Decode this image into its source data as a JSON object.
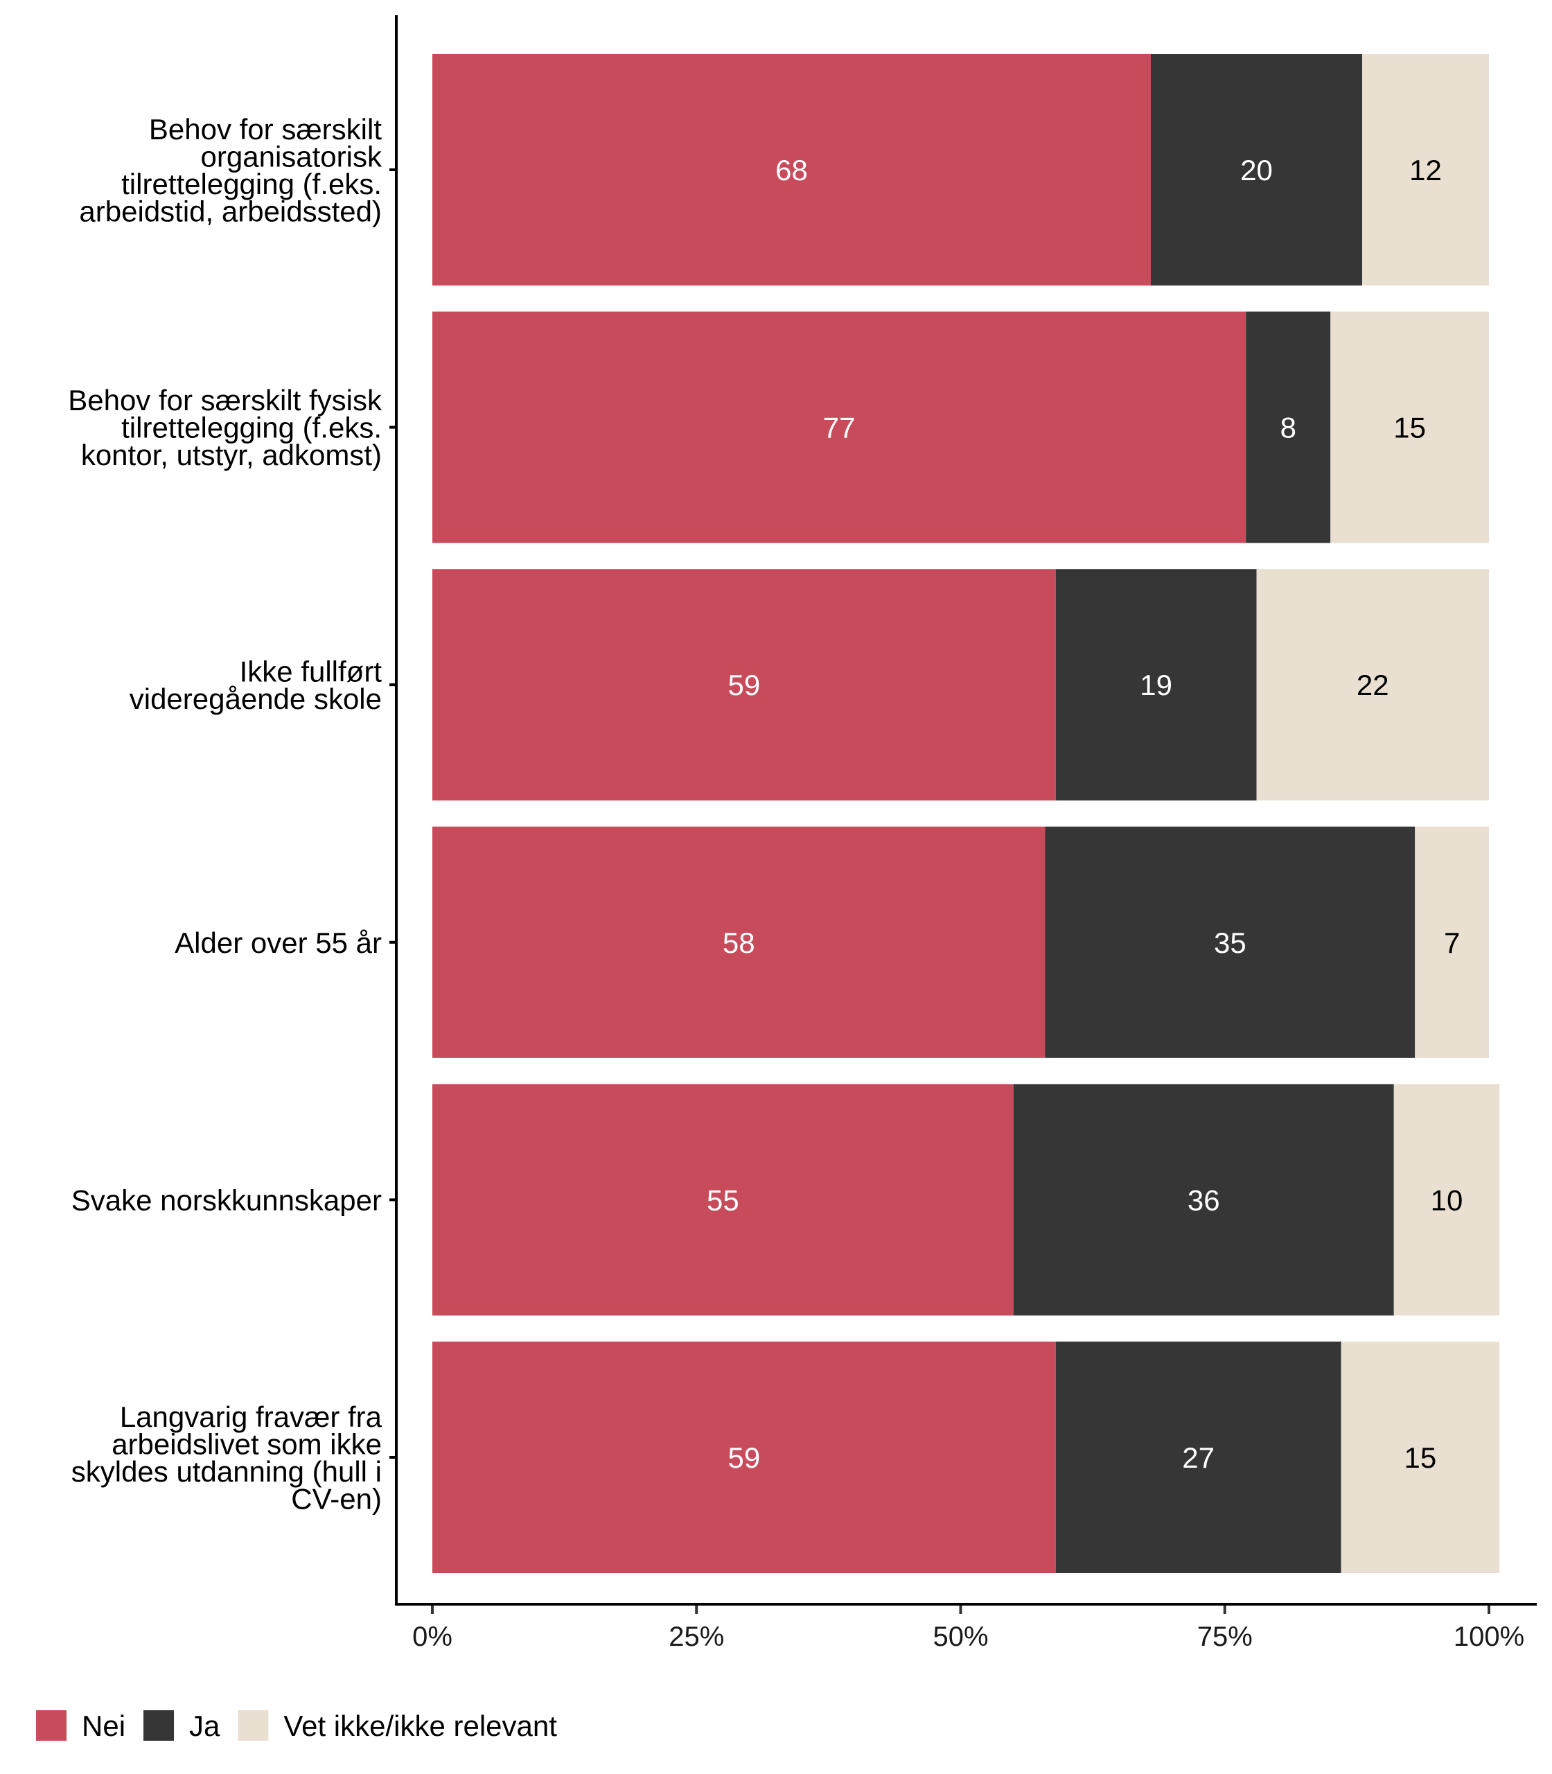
{
  "chart_data": {
    "type": "bar",
    "orientation": "horizontal",
    "stacked": true,
    "title": "",
    "xlabel": "",
    "ylabel": "",
    "xlim": [
      0,
      100
    ],
    "x_ticks": [
      0,
      25,
      50,
      75,
      100
    ],
    "x_tick_labels": [
      "0%",
      "25%",
      "50%",
      "75%",
      "100%"
    ],
    "grid": false,
    "legend_position": "bottom-left",
    "categories": [
      [
        "Behov for særskilt",
        "organisatorisk",
        "tilrettelegging (f.eks.",
        "arbeidstid, arbeidssted)"
      ],
      [
        "Behov for særskilt fysisk",
        "tilrettelegging (f.eks.",
        "kontor, utstyr, adkomst)"
      ],
      [
        "Ikke fullført",
        "videregående skole"
      ],
      [
        "Alder over 55 år"
      ],
      [
        "Svake norskkunnskaper"
      ],
      [
        "Langvarig fravær fra",
        "arbeidslivet som ikke",
        "skyldes utdanning (hull i",
        "CV-en)"
      ]
    ],
    "series": [
      {
        "name": "Nei",
        "color": "#c84b5b",
        "label_color": "#ffffff",
        "values": [
          68,
          77,
          59,
          58,
          55,
          59
        ]
      },
      {
        "name": "Ja",
        "color": "#363636",
        "label_color": "#ffffff",
        "values": [
          20,
          8,
          19,
          35,
          36,
          27
        ]
      },
      {
        "name": "Vet ikke/ikke relevant",
        "color": "#eae0d1",
        "label_color": "#000000",
        "values": [
          12,
          15,
          22,
          7,
          10,
          15
        ]
      }
    ]
  }
}
